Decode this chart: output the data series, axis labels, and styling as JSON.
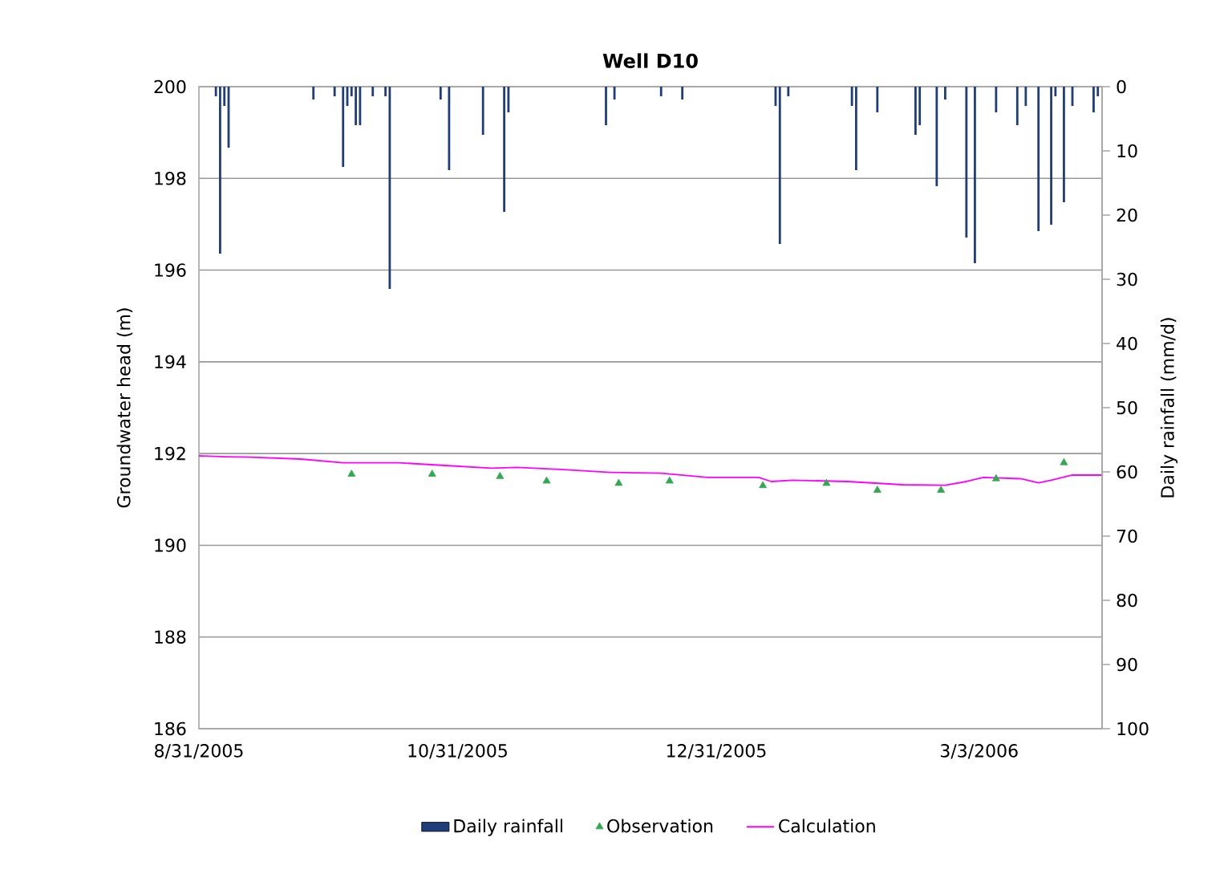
{
  "chart_data": {
    "type": "line",
    "title": "Well D10",
    "ylabel": "Groundwater head (m)",
    "y2label": "Daily rainfall (mm/d)",
    "xlim": [
      "2005-08-31",
      "2006-04-01"
    ],
    "xticks": [
      {
        "value": "2005-08-31",
        "label": "8/31/2005"
      },
      {
        "value": "2005-10-31",
        "label": "10/31/2005"
      },
      {
        "value": "2005-12-31",
        "label": "12/31/2005"
      },
      {
        "value": "2006-03-03",
        "label": "3/3/2006"
      }
    ],
    "ylim": [
      186,
      200
    ],
    "yticks": [
      186,
      188,
      190,
      192,
      194,
      196,
      198,
      200
    ],
    "y2lim": [
      100,
      0
    ],
    "y2ticks": [
      0,
      10,
      20,
      30,
      40,
      50,
      60,
      70,
      80,
      90,
      100
    ],
    "grid": "y",
    "legend": "bottom",
    "series": [
      {
        "name": "Daily rainfall",
        "type": "bar",
        "axis": "y2",
        "color": "#1f3d7a",
        "x": [
          "2005-09-04",
          "2005-09-05",
          "2005-09-06",
          "2005-09-07",
          "2005-09-27",
          "2005-10-02",
          "2005-10-04",
          "2005-10-05",
          "2005-10-06",
          "2005-10-07",
          "2005-10-08",
          "2005-10-11",
          "2005-10-14",
          "2005-10-15",
          "2005-10-27",
          "2005-10-29",
          "2005-11-06",
          "2005-11-11",
          "2005-11-12",
          "2005-12-05",
          "2005-12-07",
          "2005-12-18",
          "2005-12-23",
          "2006-01-14",
          "2006-01-15",
          "2006-01-17",
          "2006-02-01",
          "2006-02-02",
          "2006-02-07",
          "2006-02-16",
          "2006-02-17",
          "2006-02-21",
          "2006-02-23",
          "2006-02-28",
          "2006-03-02",
          "2006-03-07",
          "2006-03-12",
          "2006-03-14",
          "2006-03-17",
          "2006-03-20",
          "2006-03-21",
          "2006-03-23",
          "2006-03-25",
          "2006-03-30",
          "2006-03-31"
        ],
        "values": [
          1.5,
          26,
          3,
          9.5,
          2,
          1.5,
          12.5,
          3,
          1.5,
          6,
          6,
          1.5,
          1.5,
          31.5,
          2,
          13,
          7.5,
          19.5,
          4,
          6,
          2,
          1.5,
          2,
          3,
          24.5,
          1.5,
          3,
          13,
          4,
          7.5,
          6,
          15.5,
          2,
          23.5,
          27.5,
          4,
          6,
          3,
          22.5,
          21.5,
          1.5,
          18,
          3,
          4,
          1.5
        ]
      },
      {
        "name": "Observation",
        "type": "scatter",
        "marker": "triangle",
        "color": "#33a853",
        "x": [
          "2005-10-06",
          "2005-10-25",
          "2005-11-10",
          "2005-11-21",
          "2005-12-08",
          "2005-12-20",
          "2006-01-11",
          "2006-01-26",
          "2006-02-07",
          "2006-02-22",
          "2006-03-07",
          "2006-03-23"
        ],
        "values": [
          191.55,
          191.55,
          191.5,
          191.4,
          191.35,
          191.4,
          191.3,
          191.35,
          191.2,
          191.2,
          191.45,
          191.8
        ]
      },
      {
        "name": "Calculation",
        "line_style": "solid",
        "color": "#ff00ff",
        "x": [
          "2005-08-31",
          "2005-09-06",
          "2005-09-12",
          "2005-09-24",
          "2005-10-04",
          "2005-10-17",
          "2005-10-28",
          "2005-11-08",
          "2005-11-14",
          "2005-11-25",
          "2005-12-06",
          "2005-12-18",
          "2005-12-29",
          "2006-01-10",
          "2006-01-13",
          "2006-01-18",
          "2006-01-31",
          "2006-02-13",
          "2006-02-23",
          "2006-02-28",
          "2006-03-04",
          "2006-03-13",
          "2006-03-17",
          "2006-03-20",
          "2006-03-25",
          "2006-04-01"
        ],
        "values": [
          191.95,
          191.93,
          191.92,
          191.88,
          191.8,
          191.8,
          191.74,
          191.68,
          191.7,
          191.65,
          191.59,
          191.57,
          191.48,
          191.48,
          191.39,
          191.42,
          191.39,
          191.32,
          191.31,
          191.39,
          191.48,
          191.45,
          191.36,
          191.42,
          191.53,
          191.53
        ]
      }
    ]
  }
}
